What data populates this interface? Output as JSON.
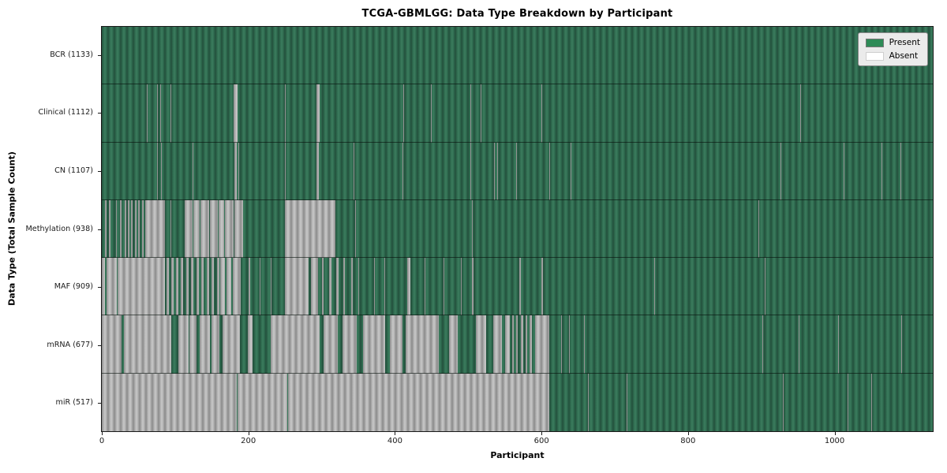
{
  "chart_data": {
    "type": "heatmap",
    "title": "TCGA-GBMLGG: Data Type Breakdown by Participant",
    "xlabel": "Participant",
    "ylabel": "Data Type (Total Sample Count)",
    "x_ticks": [
      0,
      200,
      400,
      600,
      800,
      1000
    ],
    "x_range": [
      0,
      1134
    ],
    "n_participants": 1133,
    "grid": false,
    "legend_position": "upper right",
    "legend": [
      {
        "label": "Present",
        "color": "#2e8b57"
      },
      {
        "label": "Absent",
        "color": "#ffffff"
      }
    ],
    "rows": [
      {
        "name": "BCR",
        "label": "BCR (1133)",
        "present_count": 1133,
        "absent_count": 0,
        "absent_intervals": []
      },
      {
        "name": "Clinical",
        "label": "Clinical (1112)",
        "present_count": 1112,
        "absent_count": 21,
        "absent_intervals": [
          [
            61,
            62
          ],
          [
            75,
            76
          ],
          [
            80,
            81
          ],
          [
            94,
            95
          ],
          [
            180,
            185
          ],
          [
            250,
            251
          ],
          [
            293,
            297
          ],
          [
            411,
            412
          ],
          [
            449,
            450
          ],
          [
            503,
            504
          ],
          [
            510,
            511
          ],
          [
            517,
            518
          ],
          [
            600,
            601
          ],
          [
            953,
            954
          ]
        ]
      },
      {
        "name": "CN",
        "label": "CN (1107)",
        "present_count": 1107,
        "absent_count": 26,
        "absent_intervals": [
          [
            75,
            76
          ],
          [
            77,
            78
          ],
          [
            81,
            82
          ],
          [
            104,
            105
          ],
          [
            124,
            125
          ],
          [
            181,
            184
          ],
          [
            186,
            187
          ],
          [
            250,
            251
          ],
          [
            293,
            296
          ],
          [
            344,
            345
          ],
          [
            410,
            411
          ],
          [
            503,
            504
          ],
          [
            535,
            536
          ],
          [
            540,
            541
          ],
          [
            565,
            566
          ],
          [
            611,
            612
          ],
          [
            640,
            641
          ],
          [
            926,
            927
          ],
          [
            1001,
            1002
          ],
          [
            1012,
            1013
          ],
          [
            1064,
            1065
          ],
          [
            1090,
            1091
          ]
        ]
      },
      {
        "name": "Methylation",
        "label": "Methylation (938)",
        "present_count": 938,
        "absent_count": 195,
        "absent_intervals": [
          [
            4,
            6
          ],
          [
            10,
            12
          ],
          [
            19,
            21
          ],
          [
            25,
            27
          ],
          [
            31,
            33
          ],
          [
            36,
            38
          ],
          [
            40,
            42
          ],
          [
            45,
            47
          ],
          [
            50,
            52
          ],
          [
            55,
            57
          ],
          [
            59,
            86
          ],
          [
            94,
            95
          ],
          [
            113,
            124
          ],
          [
            125,
            134
          ],
          [
            135,
            146
          ],
          [
            147,
            158
          ],
          [
            159,
            167
          ],
          [
            168,
            180
          ],
          [
            181,
            193
          ],
          [
            250,
            319
          ],
          [
            346,
            347
          ],
          [
            399,
            400
          ],
          [
            505,
            506
          ],
          [
            896,
            897
          ]
        ]
      },
      {
        "name": "MAF",
        "label": "MAF (909)",
        "present_count": 909,
        "absent_count": 224,
        "absent_intervals": [
          [
            0,
            4
          ],
          [
            6,
            20
          ],
          [
            22,
            86
          ],
          [
            88,
            92
          ],
          [
            95,
            98
          ],
          [
            101,
            104
          ],
          [
            108,
            111
          ],
          [
            115,
            118
          ],
          [
            122,
            125
          ],
          [
            129,
            132
          ],
          [
            136,
            139
          ],
          [
            143,
            146
          ],
          [
            150,
            153
          ],
          [
            157,
            160
          ],
          [
            161,
            168
          ],
          [
            170,
            177
          ],
          [
            179,
            190
          ],
          [
            200,
            202
          ],
          [
            215,
            217
          ],
          [
            230,
            232
          ],
          [
            250,
            282
          ],
          [
            285,
            295
          ],
          [
            300,
            303
          ],
          [
            310,
            313
          ],
          [
            320,
            323
          ],
          [
            330,
            332
          ],
          [
            340,
            342
          ],
          [
            350,
            351
          ],
          [
            371,
            373
          ],
          [
            385,
            387
          ],
          [
            417,
            421
          ],
          [
            440,
            442
          ],
          [
            466,
            467
          ],
          [
            490,
            491
          ],
          [
            505,
            507
          ],
          [
            553,
            554
          ],
          [
            570,
            572
          ],
          [
            600,
            602
          ],
          [
            754,
            755
          ],
          [
            905,
            906
          ]
        ]
      },
      {
        "name": "mRNA",
        "label": "mRNA (677)",
        "present_count": 677,
        "absent_count": 456,
        "absent_intervals": [
          [
            0,
            27
          ],
          [
            30,
            95
          ],
          [
            104,
            118
          ],
          [
            119,
            129
          ],
          [
            133,
            147
          ],
          [
            150,
            160
          ],
          [
            165,
            188
          ],
          [
            199,
            206
          ],
          [
            230,
            297
          ],
          [
            303,
            322
          ],
          [
            328,
            348
          ],
          [
            356,
            387
          ],
          [
            393,
            410
          ],
          [
            415,
            460
          ],
          [
            474,
            486
          ],
          [
            510,
            524
          ],
          [
            534,
            546
          ],
          [
            550,
            557
          ],
          [
            560,
            562
          ],
          [
            565,
            568
          ],
          [
            572,
            575
          ],
          [
            578,
            581
          ],
          [
            584,
            587
          ],
          [
            591,
            611
          ],
          [
            627,
            628
          ],
          [
            638,
            639
          ],
          [
            658,
            659
          ],
          [
            679,
            680
          ],
          [
            901,
            902
          ],
          [
            951,
            952
          ],
          [
            1005,
            1006
          ],
          [
            1091,
            1092
          ]
        ]
      },
      {
        "name": "miR",
        "label": "miR (517)",
        "present_count": 517,
        "absent_count": 616,
        "absent_intervals": [
          [
            0,
            184
          ],
          [
            185,
            253
          ],
          [
            254,
            611
          ],
          [
            663,
            664
          ],
          [
            716,
            717
          ],
          [
            929,
            930
          ],
          [
            958,
            959
          ],
          [
            987,
            988
          ],
          [
            1018,
            1019
          ],
          [
            1050,
            1051
          ]
        ]
      }
    ]
  }
}
